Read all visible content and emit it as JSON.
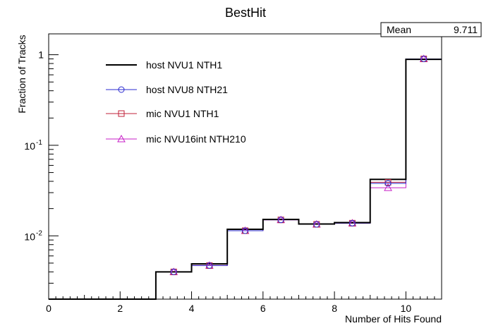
{
  "chart_data": {
    "type": "line",
    "title": "BestHit",
    "xlabel": "Number of Hits Found",
    "ylabel": "Fraction of Tracks",
    "xlim": [
      0,
      11
    ],
    "ylim": [
      0.002,
      1.7
    ],
    "yscale": "log",
    "x_ticks": [
      0,
      2,
      4,
      6,
      8,
      10
    ],
    "y_ticks": [
      {
        "value": 1,
        "base": "1",
        "exp": ""
      },
      {
        "value": 0.1,
        "base": "10",
        "exp": "-1"
      },
      {
        "value": 0.01,
        "base": "10",
        "exp": "-2"
      }
    ],
    "stats": {
      "label": "Mean",
      "value": "9.711"
    },
    "legend_position": "top-left",
    "bin_edges": [
      0,
      1,
      2,
      3,
      4,
      5,
      6,
      7,
      8,
      9,
      10,
      11
    ],
    "series": [
      {
        "name": "host NVU1 NTH1",
        "style": "histogram",
        "color": "#000000",
        "marker": "none",
        "values": [
          0,
          0,
          0,
          0.004,
          0.0049,
          0.0118,
          0.0152,
          0.0135,
          0.014,
          0.042,
          0.89
        ]
      },
      {
        "name": "host NVU8 NTH21",
        "style": "histogram",
        "color": "#2b2bd0",
        "marker": "circle",
        "values": [
          0,
          0,
          0,
          0.004,
          0.0047,
          0.0114,
          0.015,
          0.0134,
          0.0138,
          0.038,
          0.9
        ]
      },
      {
        "name": "mic NVU1 NTH1",
        "style": "histogram",
        "color": "#c0203a",
        "marker": "square",
        "values": [
          0,
          0,
          0,
          0.004,
          0.0047,
          0.0114,
          0.015,
          0.0134,
          0.0138,
          0.039,
          0.9
        ]
      },
      {
        "name": "mic NVU16int NTH210",
        "style": "histogram",
        "color": "#c71fc7",
        "marker": "triangle",
        "values": [
          0,
          0,
          0,
          0.004,
          0.0047,
          0.0114,
          0.015,
          0.0134,
          0.0138,
          0.034,
          0.9
        ]
      }
    ]
  }
}
